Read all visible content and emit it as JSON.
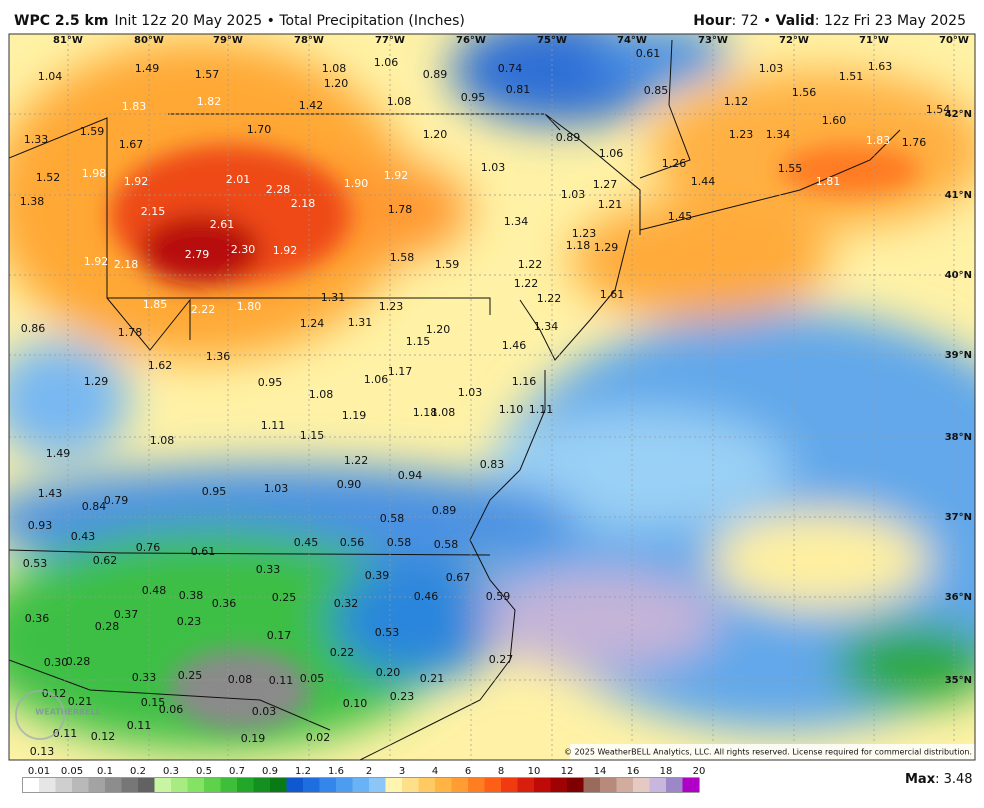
{
  "header": {
    "model": "WPC 2.5 km",
    "description": "Init 12z 20 May 2025 • Total Precipitation (Inches)",
    "hour_label": "Hour",
    "hour_value": ": 72 • ",
    "valid_label": "Valid",
    "valid_value": ": 12z Fri 23 May 2025"
  },
  "map": {
    "longitude_labels": [
      "81°W",
      "80°W",
      "79°W",
      "78°W",
      "77°W",
      "76°W",
      "75°W",
      "74°W",
      "73°W",
      "72°W",
      "71°W",
      "70°W"
    ],
    "latitude_labels": [
      "42°N",
      "41°N",
      "40°N",
      "39°N",
      "38°N",
      "37°N",
      "36°N",
      "35°N"
    ],
    "values": [
      "1.04",
      "1.49",
      "1.57",
      "1.08",
      "1.06",
      "0.89",
      "0.74",
      "0.61",
      "1.03",
      "1.51",
      "1.63",
      "1.20",
      "0.81",
      "0.85",
      "1.56",
      "1.83",
      "1.82",
      "1.42",
      "1.08",
      "0.95",
      "1.12",
      "1.54",
      "1.33",
      "1.59",
      "1.70",
      "1.20",
      "0.89",
      "1.23",
      "1.34",
      "1.60",
      "1.83",
      "1.76",
      "1.67",
      "1.06",
      "1.26",
      "1.55",
      "1.52",
      "1.98",
      "1.92",
      "2.01",
      "2.28",
      "1.90",
      "1.92",
      "1.03",
      "1.27",
      "1.44",
      "1.81",
      "1.38",
      "2.18",
      "1.78",
      "1.03",
      "1.21",
      "1.45",
      "2.15",
      "2.61",
      "1.34",
      "2.30",
      "1.92",
      "1.23",
      "1.18",
      "1.29",
      "1.92",
      "2.18",
      "2.79",
      "1.58",
      "1.59",
      "1.22",
      "1.22",
      "1.61",
      "1.31",
      "1.22",
      "1.85",
      "2.22",
      "1.80",
      "1.23",
      "1.24",
      "1.31",
      "1.20",
      "1.34",
      "0.86",
      "1.78",
      "1.15",
      "1.46",
      "1.36",
      "1.62",
      "1.17",
      "1.06",
      "1.29",
      "0.95",
      "1.16",
      "1.08",
      "1.03",
      "1.19",
      "1.18",
      "1.08",
      "1.10",
      "1.11",
      "1.11",
      "1.15",
      "1.08",
      "1.49",
      "1.22",
      "0.83",
      "0.94",
      "0.90",
      "1.03",
      "0.95",
      "1.43",
      "0.79",
      "0.84",
      "0.89",
      "0.93",
      "0.58",
      "0.43",
      "0.45",
      "0.56",
      "0.58",
      "0.58",
      "0.76",
      "0.61",
      "0.62",
      "0.53",
      "0.33",
      "0.39",
      "0.67",
      "0.48",
      "0.38",
      "0.36",
      "0.25",
      "0.46",
      "0.59",
      "0.32",
      "0.37",
      "0.28",
      "0.23",
      "0.36",
      "0.17",
      "0.53",
      "0.22",
      "0.30",
      "0.28",
      "0.27",
      "0.33",
      "0.25",
      "0.08",
      "0.11",
      "0.05",
      "0.20",
      "0.21",
      "0.12",
      "0.21",
      "0.15",
      "0.23",
      "0.06",
      "0.03",
      "0.10",
      "0.11",
      "0.11",
      "0.12",
      "0.19",
      "0.02",
      "0.13"
    ]
  },
  "logo": "WEATHERBELL",
  "copyright": "© 2025 WeatherBELL Analytics, LLC. All rights reserved. License required for commercial distribution.",
  "legend": {
    "ticks": [
      "0.01",
      "0.05",
      "0.1",
      "0.2",
      "0.3",
      "0.5",
      "0.7",
      "0.9",
      "1.2",
      "1.6",
      "2",
      "3",
      "4",
      "6",
      "8",
      "10",
      "12",
      "14",
      "16",
      "18",
      "20"
    ]
  },
  "max": {
    "label": "Max",
    "value": ": 3.48"
  }
}
